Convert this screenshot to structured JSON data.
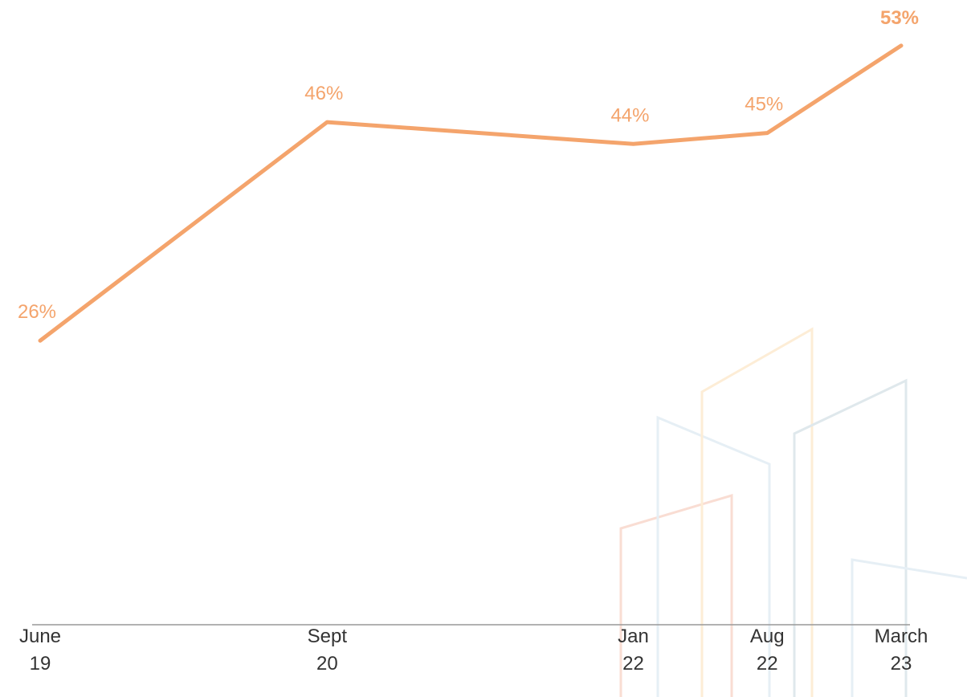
{
  "chart_data": {
    "type": "line",
    "x": [
      "2019-06",
      "2020-09",
      "2022-01",
      "2022-08",
      "2023-03"
    ],
    "xlim": [
      "2019-06",
      "2023-03"
    ],
    "xticks": [
      {
        "value": "2019-06",
        "label": "June 19"
      },
      {
        "value": "2020-09",
        "label": "Sept 20"
      },
      {
        "value": "2022-01",
        "label": "Jan 22"
      },
      {
        "value": "2022-08",
        "label": "Aug 22"
      },
      {
        "value": "2023-03",
        "label": "March 23"
      }
    ],
    "series": [
      {
        "color": "#f4a46c",
        "values": [
          26,
          46,
          44,
          45,
          53
        ],
        "value_labels": [
          "26%",
          "46%",
          "44%",
          "45%",
          "53%"
        ]
      }
    ],
    "ylim": [
      0,
      56
    ]
  }
}
